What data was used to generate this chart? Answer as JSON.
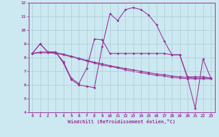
{
  "title": "",
  "xlabel": "Windchill (Refroidissement éolien,°C)",
  "xlim": [
    -0.5,
    23.5
  ],
  "ylim": [
    4,
    12
  ],
  "yticks": [
    4,
    5,
    6,
    7,
    8,
    9,
    10,
    11,
    12
  ],
  "xticks": [
    0,
    1,
    2,
    3,
    4,
    5,
    6,
    7,
    8,
    9,
    10,
    11,
    12,
    13,
    14,
    15,
    16,
    17,
    18,
    19,
    20,
    21,
    22,
    23
  ],
  "background_color": "#cce8f0",
  "grid_color": "#aaccd8",
  "line_color": "#993399",
  "line1_x": [
    0,
    1,
    2,
    3,
    4,
    5,
    6,
    7,
    8,
    9,
    10,
    11,
    12,
    13,
    14,
    15,
    16,
    17,
    18,
    19,
    20,
    21,
    22,
    23
  ],
  "line1_y": [
    8.3,
    9.0,
    8.4,
    8.4,
    7.6,
    6.4,
    6.0,
    5.9,
    5.8,
    8.8,
    11.2,
    10.7,
    11.5,
    11.65,
    11.5,
    11.1,
    10.4,
    9.2,
    8.2,
    8.2,
    6.5,
    4.3,
    7.9,
    6.5
  ],
  "line2_x": [
    0,
    1,
    2,
    3,
    4,
    5,
    6,
    7,
    8,
    9,
    10,
    11,
    12,
    13,
    14,
    15,
    16,
    17,
    18,
    19,
    20,
    21,
    22,
    23
  ],
  "line2_y": [
    8.3,
    9.0,
    8.4,
    8.4,
    7.7,
    6.5,
    6.1,
    7.2,
    9.35,
    9.3,
    8.3,
    8.3,
    8.3,
    8.3,
    8.3,
    8.3,
    8.3,
    8.3,
    8.2,
    8.2,
    6.6,
    6.6,
    6.6,
    6.5
  ],
  "line3_x": [
    0,
    1,
    2,
    3,
    4,
    5,
    6,
    7,
    8,
    9,
    10,
    11,
    12,
    13,
    14,
    15,
    16,
    17,
    18,
    19,
    20,
    21,
    22,
    23
  ],
  "line3_y": [
    8.3,
    8.4,
    8.4,
    8.35,
    8.25,
    8.1,
    7.95,
    7.8,
    7.65,
    7.55,
    7.4,
    7.3,
    7.2,
    7.1,
    7.0,
    6.9,
    6.8,
    6.75,
    6.65,
    6.6,
    6.55,
    6.5,
    6.5,
    6.5
  ],
  "line4_x": [
    0,
    1,
    2,
    3,
    4,
    5,
    6,
    7,
    8,
    9,
    10,
    11,
    12,
    13,
    14,
    15,
    16,
    17,
    18,
    19,
    20,
    21,
    22,
    23
  ],
  "line4_y": [
    8.3,
    8.35,
    8.35,
    8.3,
    8.2,
    8.05,
    7.9,
    7.75,
    7.6,
    7.45,
    7.35,
    7.25,
    7.1,
    7.0,
    6.9,
    6.8,
    6.7,
    6.65,
    6.55,
    6.5,
    6.45,
    6.45,
    6.45,
    6.45
  ]
}
